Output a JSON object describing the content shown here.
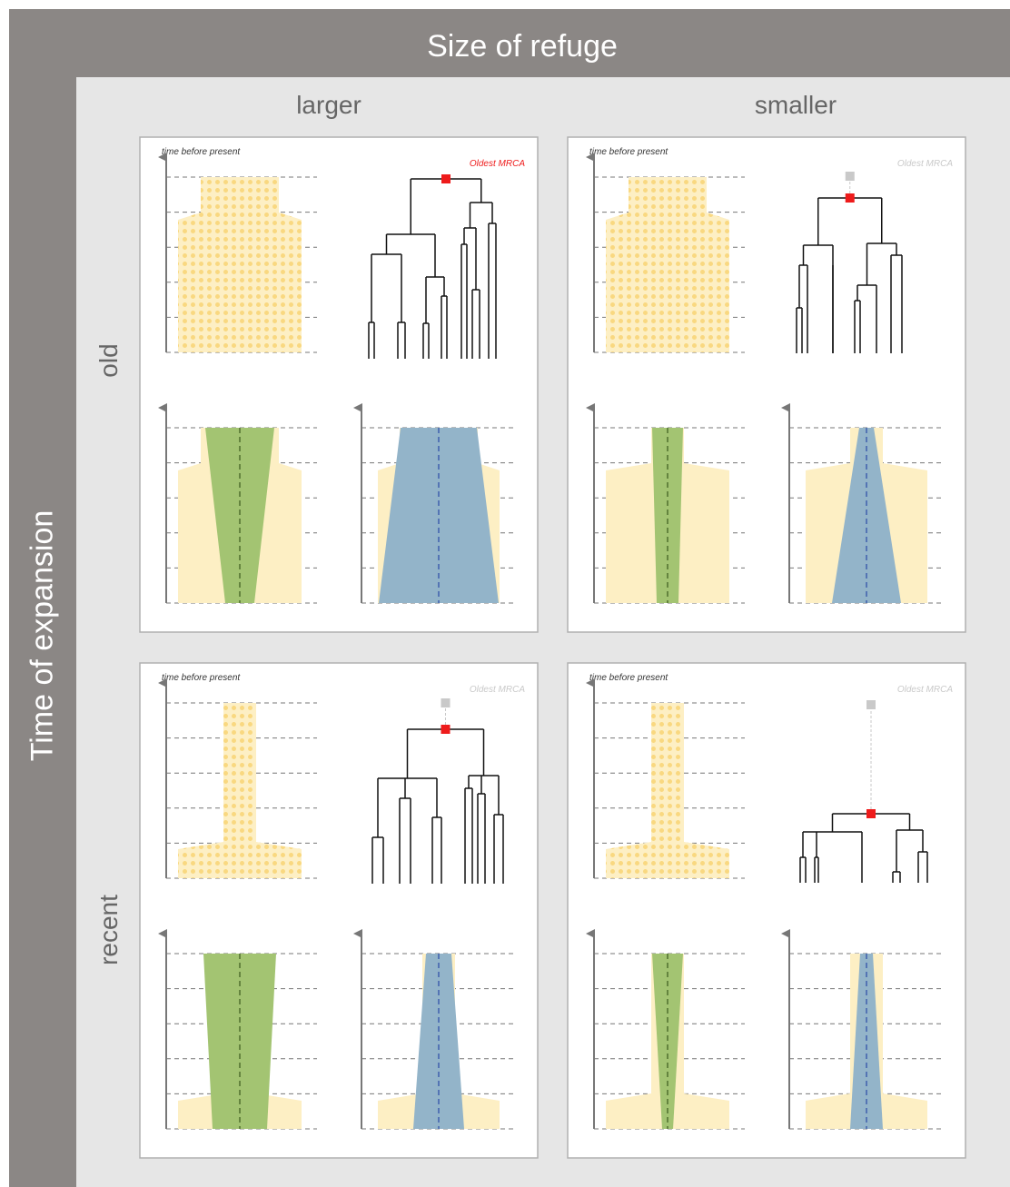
{
  "header": {
    "title": "Size of refuge"
  },
  "side": {
    "title": "Time of expansion"
  },
  "columns": [
    "larger",
    "smaller"
  ],
  "rows": [
    "old",
    "recent"
  ],
  "panel_text": {
    "time_label": "time before present",
    "mrca_label": "Oldest MRCA"
  },
  "colors": {
    "band": "#8b8785",
    "inner": "#e6e6e6",
    "panel_border": "#b0b0b0",
    "pop": "#fdefc4",
    "dots": "#f9d880",
    "green": "#a3c472",
    "blue": "#93b4c9",
    "red_node": "#ee1b1b",
    "mrca_active": "#ee1b1b",
    "mrca_inactive": "#c9c9c9",
    "green_axis": "#4f6e2c",
    "blue_axis": "#3f5fad",
    "axis": "#777777"
  },
  "panels": [
    {
      "name": "larger-old",
      "col": 0,
      "row": 0,
      "mrca_active": true
    },
    {
      "name": "smaller-old",
      "col": 1,
      "row": 0,
      "mrca_active": false
    },
    {
      "name": "larger-recent",
      "col": 0,
      "row": 1,
      "mrca_active": false
    },
    {
      "name": "smaller-recent",
      "col": 1,
      "row": 1,
      "mrca_active": false
    }
  ]
}
